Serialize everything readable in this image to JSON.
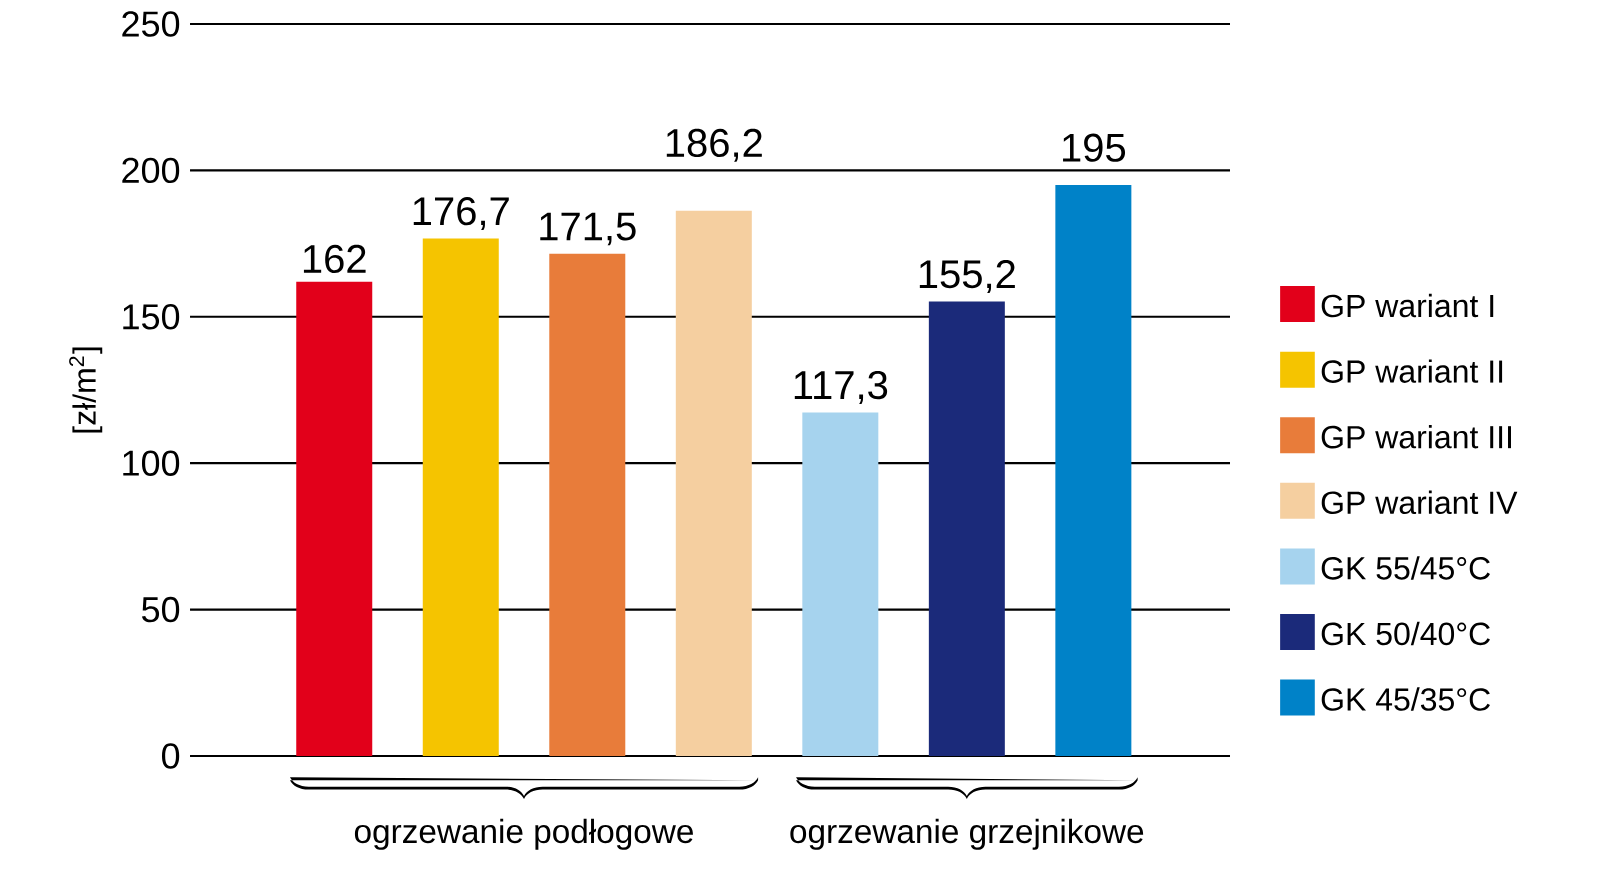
{
  "chart_data": {
    "type": "bar",
    "ylabel": "[zł/m$^{2}$]",
    "categories": [
      null,
      null,
      null,
      null,
      null,
      null,
      null
    ],
    "series": [
      {
        "name": "GP wariant I",
        "color": "#e2001a",
        "values": [
          162,
          null,
          null,
          null,
          null,
          null,
          null
        ],
        "value_labels": [
          "162",
          null,
          null,
          null,
          null,
          null,
          null
        ]
      },
      {
        "name": "GP wariant II",
        "color": "#f5c400",
        "values": [
          null,
          176.7,
          null,
          null,
          null,
          null,
          null
        ],
        "value_labels": [
          null,
          "176,7",
          null,
          null,
          null,
          null,
          null
        ]
      },
      {
        "name": "GP wariant III",
        "color": "#e87c3a",
        "values": [
          null,
          null,
          171.5,
          null,
          null,
          null,
          null
        ],
        "value_labels": [
          null,
          null,
          "171,5",
          null,
          null,
          null,
          null
        ]
      },
      {
        "name": "GP wariant IV",
        "color": "#f5cfa0",
        "values": [
          null,
          null,
          null,
          186.2,
          null,
          null,
          null
        ],
        "value_labels": [
          null,
          null,
          null,
          "186,2",
          null,
          null,
          null
        ]
      },
      {
        "name": "GK 55/45°C",
        "color": "#a6d3ee",
        "values": [
          null,
          null,
          null,
          null,
          117.3,
          null,
          null
        ],
        "value_labels": [
          null,
          null,
          null,
          null,
          "117,3",
          null,
          null
        ]
      },
      {
        "name": "GK 50/40°C",
        "color": "#1b2a7a",
        "values": [
          null,
          null,
          null,
          null,
          null,
          155.2,
          null
        ],
        "value_labels": [
          null,
          null,
          null,
          null,
          null,
          "155,2",
          null
        ]
      },
      {
        "name": "GK 45/35°C",
        "color": "#0082c8",
        "values": [
          null,
          null,
          null,
          null,
          null,
          null,
          195
        ],
        "value_labels": [
          null,
          null,
          null,
          null,
          null,
          null,
          "195"
        ]
      }
    ],
    "ylim": [
      0,
      250
    ],
    "yticks": [
      0,
      50,
      100,
      150,
      200,
      250
    ],
    "grid": "y",
    "legend": "right",
    "tick_labels": "y",
    "annotations": [
      "ogrzewanie podłogowe",
      "ogrzewanie grzejnikowe"
    ]
  }
}
